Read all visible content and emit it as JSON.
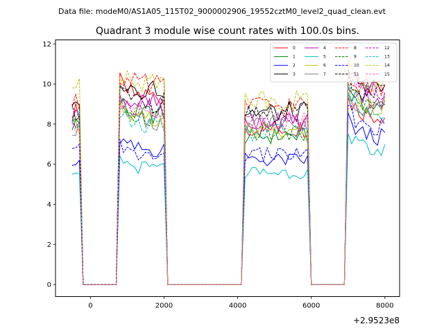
{
  "suptitle": "Data file: modeM0/AS1A05_115T02_9000002906_19552cztM0_level2_quad_clean.evt",
  "chart_data": {
    "type": "line",
    "title": "Quadrant 3 module wise count rates with 100.0s bins.",
    "xlabel": "",
    "ylabel": "",
    "x_offset_label": "+2.9523e8",
    "xlim": [
      -950,
      8400
    ],
    "ylim": [
      -0.6,
      12.2
    ],
    "xticks": [
      0,
      2000,
      4000,
      6000,
      8000
    ],
    "xtick_labels": [
      "0",
      "2000",
      "4000",
      "6000",
      "8000"
    ],
    "yticks": [
      0,
      2,
      4,
      6,
      8,
      10,
      12
    ],
    "ytick_labels": [
      "0",
      "2",
      "4",
      "6",
      "8",
      "10",
      "12"
    ],
    "legend_position": "top-right",
    "segments": [
      {
        "start": -500,
        "end": -300
      },
      {
        "start": 800,
        "end": 2000
      },
      {
        "start": 4200,
        "end": 5900
      },
      {
        "start": 7000,
        "end": 8000
      }
    ],
    "series": [
      {
        "name": "0",
        "color": "#ff0000",
        "dash": "solid",
        "levels": [
          8.6,
          9.4,
          7.8,
          8.4
        ]
      },
      {
        "name": "1",
        "color": "#008000",
        "dash": "solid",
        "levels": [
          8.0,
          8.5,
          7.4,
          8.8
        ]
      },
      {
        "name": "2",
        "color": "#0000ff",
        "dash": "solid",
        "levels": [
          6.3,
          6.7,
          6.2,
          7.3
        ]
      },
      {
        "name": "3",
        "color": "#000000",
        "dash": "solid",
        "levels": [
          9.2,
          9.8,
          8.6,
          9.8
        ]
      },
      {
        "name": "4",
        "color": "#bf00bf",
        "dash": "solid",
        "levels": [
          8.4,
          9.0,
          8.1,
          9.2
        ]
      },
      {
        "name": "5",
        "color": "#00bfbf",
        "dash": "solid",
        "levels": [
          5.8,
          5.8,
          5.6,
          6.6
        ]
      },
      {
        "name": "6",
        "color": "#bfbf00",
        "dash": "solid",
        "levels": [
          7.9,
          8.2,
          7.6,
          8.9
        ]
      },
      {
        "name": "7",
        "color": "#808080",
        "dash": "solid",
        "levels": [
          7.8,
          8.1,
          8.0,
          8.7
        ]
      },
      {
        "name": "8",
        "color": "#ff0000",
        "dash": "dashed",
        "levels": [
          9.0,
          9.9,
          8.9,
          9.8
        ]
      },
      {
        "name": "9",
        "color": "#008000",
        "dash": "dashed",
        "levels": [
          8.0,
          8.4,
          7.6,
          8.9
        ]
      },
      {
        "name": "10",
        "color": "#0000ff",
        "dash": "dashed",
        "levels": [
          6.6,
          6.4,
          6.5,
          7.8
        ]
      },
      {
        "name": "11",
        "color": "#000000",
        "dash": "dashed",
        "levels": [
          8.7,
          9.1,
          8.6,
          9.4
        ]
      },
      {
        "name": "12",
        "color": "#bf00bf",
        "dash": "dashed",
        "levels": [
          8.1,
          8.8,
          8.1,
          9.6
        ]
      },
      {
        "name": "13",
        "color": "#00bfbf",
        "dash": "dashed",
        "levels": [
          8.2,
          8.0,
          7.6,
          8.7
        ]
      },
      {
        "name": "14",
        "color": "#bfbf00",
        "dash": "dashed",
        "levels": [
          9.8,
          10.2,
          9.2,
          9.9
        ]
      },
      {
        "name": "15",
        "color": "#ff69b4",
        "dash": "dashed",
        "levels": [
          8.0,
          8.5,
          8.2,
          9.8
        ]
      }
    ]
  }
}
